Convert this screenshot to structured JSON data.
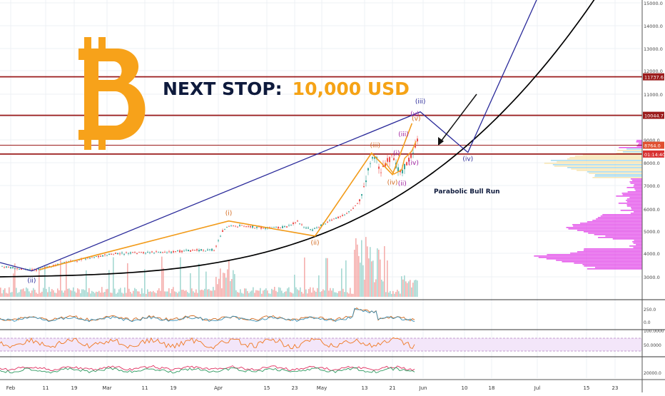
{
  "headline": {
    "prefix": "NEXT STOP:",
    "target": "10,000 USD"
  },
  "colors": {
    "bitcoin_orange": "#f7a21a",
    "projection_line": "#2a2a9a",
    "price_path": "#f29b1a",
    "parabola": "#000000",
    "resistance": "#9b1c1c",
    "volume_profile": "#e040e8"
  },
  "icons": {
    "logo": "bitcoin-logo-icon",
    "arrow": "projection-arrow-icon"
  },
  "chart_data": {
    "type": "line",
    "title": "NEXT STOP: 10,000 USD",
    "xlabel": "",
    "ylabel": "",
    "ylim": [
      2000,
      15000
    ],
    "y_scale": "log",
    "x_ticks": [
      "Feb",
      "11",
      "19",
      "Mar",
      "11",
      "19",
      "Apr",
      "15",
      "23",
      "May",
      "13",
      "21",
      "Jun",
      "10",
      "18",
      "Jul",
      "15",
      "23"
    ],
    "y_ticks": [
      3000,
      4000,
      5000,
      6000,
      7000,
      8000,
      9000,
      10000,
      11000,
      12000,
      13000,
      14000,
      15000
    ],
    "price_tags": [
      "11737.6",
      "10044.7",
      "8764.0",
      "01:14:40"
    ],
    "horizontal_lines": [
      11737.6,
      10044.7,
      8764.0,
      8380
    ],
    "annotations": [
      "Parabolic Bull Run"
    ],
    "price_waves": [
      {
        "label": "(i)",
        "x": "2019-04-04",
        "y": 5460
      },
      {
        "label": "(ii)",
        "x": "2019-04-29",
        "y": 4780
      },
      {
        "label": "(iii)",
        "x": "2019-05-15",
        "y": 8420
      },
      {
        "label": "(iv)",
        "x": "2019-05-21",
        "y": 7480
      },
      {
        "label": "(v)",
        "x": "2019-05-28",
        "y": 9700
      }
    ],
    "sub_waves": [
      {
        "label": "(i)",
        "x": "2019-05-23",
        "y": 8200
      },
      {
        "label": "(ii)",
        "x": "2019-05-24",
        "y": 7500
      },
      {
        "label": "(iii)",
        "x": "2019-05-26",
        "y": 8900
      },
      {
        "label": "(iv)",
        "x": "2019-05-27",
        "y": 8100
      },
      {
        "label": "(v)",
        "x": "2019-05-29",
        "y": 9950
      }
    ],
    "projection": [
      {
        "label": "(ii)",
        "x": "2019-02-07",
        "y": 3250
      },
      {
        "label": "(iii)",
        "x": "2019-05-31",
        "y": 10200
      },
      {
        "label": "(iv)",
        "x": "2019-06-11",
        "y": 8450
      }
    ],
    "ind1_ticks": [
      "250.0",
      "0.0"
    ],
    "ind2_ticks": [
      "100.0000",
      "50.0000"
    ],
    "ind3_ticks": [
      "20000.0"
    ]
  }
}
